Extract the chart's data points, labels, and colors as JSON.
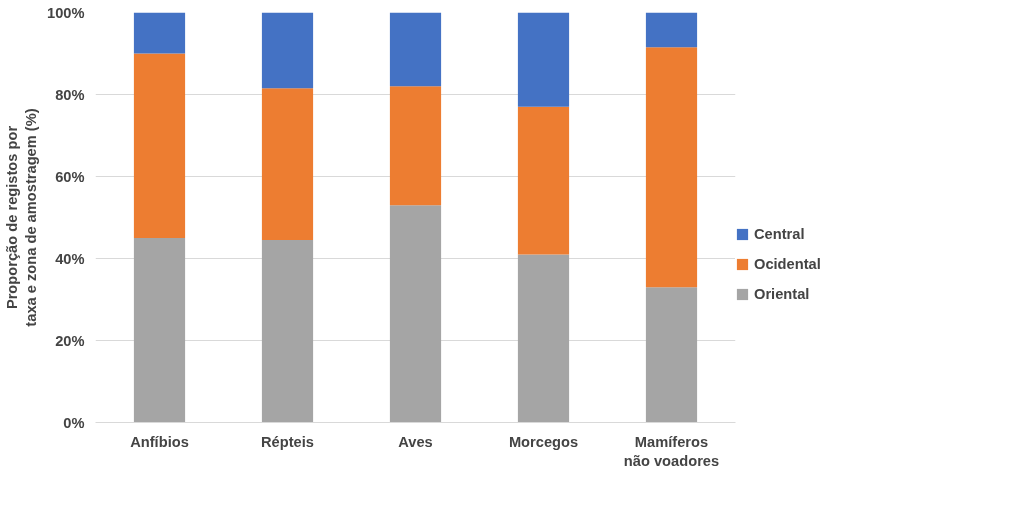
{
  "chart_data": {
    "type": "bar",
    "stacked": true,
    "categories": [
      "Anfíbios",
      "Répteis",
      "Aves",
      "Morcegos",
      "Mamíferos não voadores"
    ],
    "ylabel": "Proporção de registos por taxa e zona de amostragem (%)",
    "series": [
      {
        "name": "Oriental",
        "color": "#a5a5a5",
        "values": [
          45,
          44.5,
          53,
          41,
          33
        ]
      },
      {
        "name": "Ocidental",
        "color": "#ed7d31",
        "values": [
          45,
          37,
          29,
          36,
          58.5
        ]
      },
      {
        "name": "Central",
        "color": "#4472c4",
        "values": [
          10,
          18.5,
          18,
          23,
          8.5
        ]
      }
    ],
    "ylim": [
      0,
      100
    ],
    "yticks": [
      {
        "value": 0,
        "label": "0%"
      },
      {
        "value": 20,
        "label": "20%"
      },
      {
        "value": 40,
        "label": "40%"
      },
      {
        "value": 60,
        "label": "60%"
      },
      {
        "value": 80,
        "label": "80%"
      },
      {
        "value": 100,
        "label": "100%"
      }
    ],
    "grid": "y",
    "legend": "right"
  }
}
